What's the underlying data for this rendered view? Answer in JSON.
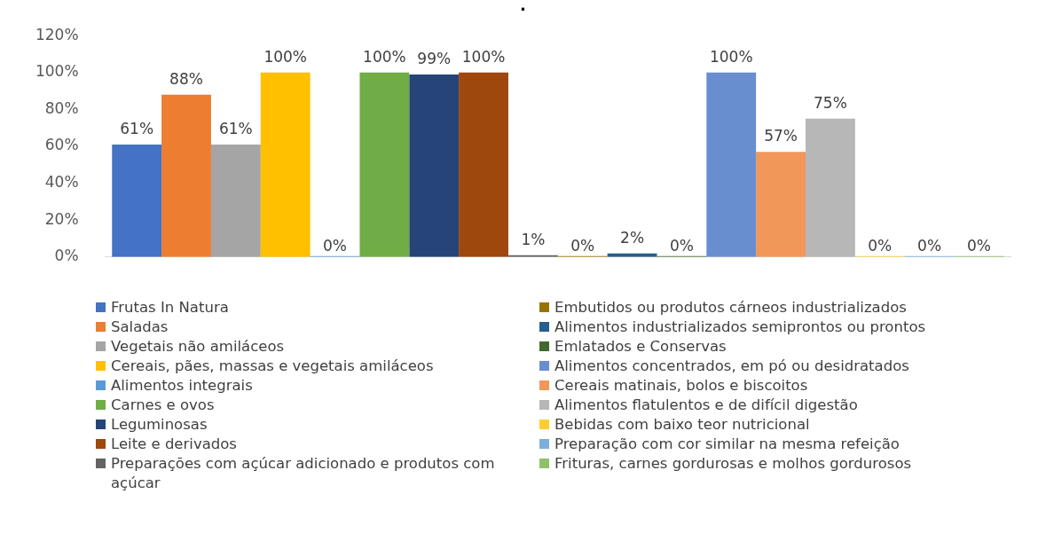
{
  "chart_data": {
    "type": "bar",
    "title": ".",
    "categories": [
      null
    ],
    "ylim": [
      0,
      120
    ],
    "yticks": [
      {
        "value": 0,
        "label": "0%"
      },
      {
        "value": 20,
        "label": "20%"
      },
      {
        "value": 40,
        "label": "40%"
      },
      {
        "value": 60,
        "label": "60%"
      },
      {
        "value": 80,
        "label": "80%"
      },
      {
        "value": 100,
        "label": "100%"
      },
      {
        "value": 120,
        "label": "120%"
      }
    ],
    "grid": false,
    "legend": "bottom",
    "series": [
      {
        "name": "Frutas In Natura",
        "color": "#4472c4",
        "values": [
          61
        ],
        "value_labels": [
          "61%"
        ]
      },
      {
        "name": "Saladas",
        "color": "#ed7d31",
        "values": [
          88
        ],
        "value_labels": [
          "88%"
        ]
      },
      {
        "name": "Vegetais não amiláceos",
        "color": "#a5a5a5",
        "values": [
          61
        ],
        "value_labels": [
          "61%"
        ]
      },
      {
        "name": "Cereais, pães, massas e vegetais amiláceos",
        "color": "#ffc000",
        "values": [
          100
        ],
        "value_labels": [
          "100%"
        ]
      },
      {
        "name": "Alimentos integrais",
        "color": "#5b9bd5",
        "values": [
          0
        ],
        "value_labels": [
          "0%"
        ]
      },
      {
        "name": "Carnes e ovos",
        "color": "#70ad47",
        "values": [
          100
        ],
        "value_labels": [
          "100%"
        ]
      },
      {
        "name": "Leguminosas",
        "color": "#264478",
        "values": [
          99
        ],
        "value_labels": [
          "99%"
        ]
      },
      {
        "name": "Leite e derivados",
        "color": "#9e480e",
        "values": [
          100
        ],
        "value_labels": [
          "100%"
        ]
      },
      {
        "name": "Preparações com açúcar adicionado e produtos com açúcar",
        "color": "#636363",
        "values": [
          1
        ],
        "value_labels": [
          "1%"
        ]
      },
      {
        "name": "Embutidos ou produtos cárneos industrializados",
        "color": "#997300",
        "values": [
          0
        ],
        "value_labels": [
          "0%"
        ]
      },
      {
        "name": "Alimentos industrializados semiprontos ou prontos",
        "color": "#255e91",
        "values": [
          2
        ],
        "value_labels": [
          "2%"
        ]
      },
      {
        "name": "Emlatados e Conservas",
        "color": "#43682b",
        "values": [
          0
        ],
        "value_labels": [
          "0%"
        ]
      },
      {
        "name": "Alimentos concentrados, em pó ou desidratados",
        "color": "#698ed0",
        "values": [
          100
        ],
        "value_labels": [
          "100%"
        ]
      },
      {
        "name": "Cereais matinais, bolos e biscoitos",
        "color": "#f1975a",
        "values": [
          57
        ],
        "value_labels": [
          "57%"
        ]
      },
      {
        "name": "Alimentos flatulentos e de difícil digestão",
        "color": "#b7b7b7",
        "values": [
          75
        ],
        "value_labels": [
          "75%"
        ]
      },
      {
        "name": "Bebidas com baixo teor nutricional",
        "color": "#ffcd33",
        "values": [
          0
        ],
        "value_labels": [
          "0%"
        ]
      },
      {
        "name": "Preparação com cor similar na mesma refeição",
        "color": "#7cafdd",
        "values": [
          0
        ],
        "value_labels": [
          "0%"
        ]
      },
      {
        "name": "Frituras, carnes gordurosas e molhos gordurosos",
        "color": "#8cc168",
        "values": [
          0
        ],
        "value_labels": [
          "0%"
        ]
      }
    ]
  }
}
